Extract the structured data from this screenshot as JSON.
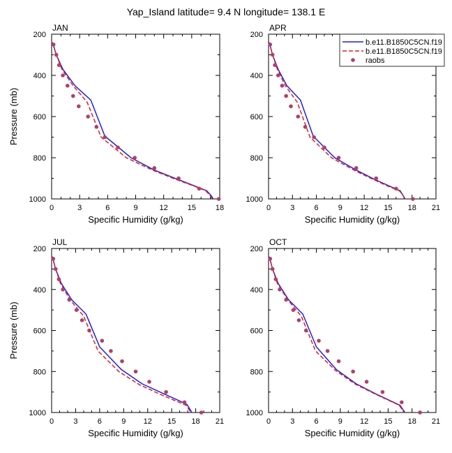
{
  "figure": {
    "title": "Yap_Island  latitude= 9.4 N longitude= 138.1 E"
  },
  "legend": {
    "placement": "top-right",
    "entries": [
      {
        "label": "b.e11.B1850C5CN.f19",
        "style": "solid-line",
        "color": "#1f1fdf"
      },
      {
        "label": "b.e11.B1850C5CN.f19",
        "style": "dashed-line",
        "color": "#df1f1f"
      },
      {
        "label": "raobs",
        "style": "marker",
        "color": "#b0406a"
      }
    ]
  },
  "chart_data": [
    {
      "type": "line",
      "panel_label": "JAN",
      "xlabel": "Specific Humidity (g/kg)",
      "ylabel": "Pressure (mb)",
      "xlim": [
        0,
        18
      ],
      "ylim": [
        1000,
        200
      ],
      "y_reversed": true,
      "xticks": [
        "0",
        "3",
        "6",
        "9",
        "12",
        "15",
        "18"
      ],
      "yticks": [
        "200",
        "400",
        "600",
        "800",
        "1000"
      ],
      "series": [
        {
          "style": "solid",
          "color": "#1f1fdf",
          "x": [
            0.1,
            0.5,
            1.2,
            2.5,
            4.2,
            5.7,
            8.5,
            11.0,
            13.5,
            15.5,
            16.6,
            17.1,
            17.3
          ],
          "y": [
            240,
            300,
            370,
            450,
            520,
            695,
            800,
            860,
            905,
            940,
            960,
            985,
            1000
          ]
        },
        {
          "style": "dashed",
          "color": "#df1f1f",
          "x": [
            0.1,
            0.5,
            1.1,
            2.3,
            3.8,
            5.3,
            8.0,
            10.8,
            13.3,
            15.4,
            16.5,
            17.0,
            17.2
          ],
          "y": [
            240,
            300,
            370,
            450,
            530,
            700,
            800,
            860,
            905,
            940,
            960,
            985,
            1000
          ]
        },
        {
          "style": "markers",
          "color": "#b0406a",
          "name": "raobs",
          "x": [
            0.2,
            0.5,
            0.8,
            1.2,
            1.7,
            2.3,
            2.9,
            3.9,
            4.8,
            5.7,
            7.1,
            8.9,
            11.0,
            13.6,
            15.8,
            17.9
          ],
          "y": [
            250,
            300,
            350,
            400,
            450,
            500,
            550,
            600,
            650,
            700,
            750,
            800,
            850,
            900,
            950,
            1000
          ]
        }
      ]
    },
    {
      "type": "line",
      "panel_label": "APR",
      "xlabel": "Specific Humidity (g/kg)",
      "ylabel": "",
      "xlim": [
        0,
        21
      ],
      "ylim": [
        1000,
        200
      ],
      "y_reversed": true,
      "xticks": [
        "0",
        "3",
        "6",
        "9",
        "12",
        "15",
        "18",
        "21"
      ],
      "yticks": [
        "200",
        "400",
        "600",
        "800",
        "1000"
      ],
      "series": [
        {
          "style": "solid",
          "color": "#1f1fdf",
          "x": [
            0.1,
            0.5,
            1.2,
            2.3,
            4.0,
            5.6,
            8.3,
            11.0,
            13.3,
            15.3,
            16.5,
            16.9,
            17.1
          ],
          "y": [
            240,
            300,
            370,
            450,
            520,
            695,
            800,
            860,
            905,
            940,
            960,
            985,
            1000
          ]
        },
        {
          "style": "dashed",
          "color": "#df1f1f",
          "x": [
            0.1,
            0.5,
            1.1,
            2.1,
            3.6,
            5.2,
            7.9,
            10.7,
            13.1,
            15.1,
            16.4,
            16.9,
            17.2
          ],
          "y": [
            240,
            300,
            370,
            450,
            530,
            700,
            800,
            860,
            905,
            940,
            960,
            985,
            1000
          ]
        },
        {
          "style": "markers",
          "color": "#b0406a",
          "name": "raobs",
          "x": [
            0.2,
            0.5,
            0.8,
            1.2,
            1.7,
            2.2,
            2.8,
            3.7,
            4.6,
            5.7,
            7.0,
            8.8,
            11.0,
            13.5,
            16.0,
            18.1
          ],
          "y": [
            250,
            300,
            350,
            400,
            450,
            500,
            550,
            600,
            650,
            700,
            750,
            800,
            850,
            900,
            950,
            1000
          ]
        }
      ]
    },
    {
      "type": "line",
      "panel_label": "JUL",
      "xlabel": "Specific Humidity (g/kg)",
      "ylabel": "Pressure (mb)",
      "xlim": [
        0,
        21
      ],
      "ylim": [
        1000,
        200
      ],
      "y_reversed": true,
      "xticks": [
        "0",
        "3",
        "6",
        "9",
        "12",
        "15",
        "18",
        "21"
      ],
      "yticks": [
        "200",
        "400",
        "600",
        "800",
        "1000"
      ],
      "series": [
        {
          "style": "solid",
          "color": "#1f1fdf",
          "x": [
            0.1,
            0.5,
            1.2,
            2.5,
            4.3,
            6.0,
            8.7,
            11.3,
            13.8,
            15.8,
            16.9,
            17.3,
            17.5
          ],
          "y": [
            240,
            300,
            370,
            450,
            520,
            680,
            790,
            860,
            905,
            940,
            960,
            985,
            1000
          ]
        },
        {
          "style": "dashed",
          "color": "#df1f1f",
          "x": [
            0.1,
            0.5,
            1.1,
            2.3,
            4.0,
            5.8,
            8.4,
            11.0,
            13.5,
            15.6,
            16.8,
            17.2,
            17.4
          ],
          "y": [
            240,
            300,
            370,
            450,
            530,
            700,
            800,
            865,
            910,
            945,
            965,
            988,
            1000
          ]
        },
        {
          "style": "markers",
          "color": "#b0406a",
          "name": "raobs",
          "x": [
            0.2,
            0.5,
            0.9,
            1.4,
            2.2,
            3.1,
            3.8,
            4.7,
            6.3,
            7.4,
            8.8,
            10.5,
            12.2,
            14.3,
            16.6,
            18.7
          ],
          "y": [
            250,
            300,
            350,
            400,
            450,
            500,
            550,
            600,
            650,
            700,
            750,
            800,
            850,
            900,
            950,
            1000
          ]
        }
      ]
    },
    {
      "type": "line",
      "panel_label": "OCT",
      "xlabel": "Specific Humidity (g/kg)",
      "ylabel": "",
      "xlim": [
        0,
        21
      ],
      "ylim": [
        1000,
        200
      ],
      "y_reversed": true,
      "xticks": [
        "0",
        "3",
        "6",
        "9",
        "12",
        "15",
        "18",
        "21"
      ],
      "yticks": [
        "200",
        "400",
        "600",
        "800",
        "1000"
      ],
      "series": [
        {
          "style": "solid",
          "color": "#1f1fdf",
          "x": [
            0.1,
            0.5,
            1.2,
            2.5,
            4.3,
            6.0,
            8.5,
            11.0,
            13.5,
            15.4,
            16.5,
            16.9,
            17.1
          ],
          "y": [
            240,
            300,
            370,
            450,
            520,
            680,
            790,
            860,
            910,
            945,
            965,
            988,
            1000
          ]
        },
        {
          "style": "dashed",
          "color": "#df1f1f",
          "x": [
            0.1,
            0.5,
            1.1,
            2.4,
            4.1,
            5.9,
            8.4,
            10.9,
            13.4,
            15.3,
            16.4,
            16.8,
            17.0
          ],
          "y": [
            240,
            300,
            370,
            450,
            530,
            700,
            795,
            862,
            910,
            945,
            965,
            988,
            1000
          ]
        },
        {
          "style": "markers",
          "color": "#b0406a",
          "name": "raobs",
          "x": [
            0.2,
            0.5,
            0.9,
            1.4,
            2.2,
            3.1,
            3.8,
            4.7,
            6.3,
            7.4,
            8.8,
            10.6,
            12.3,
            14.3,
            16.7,
            19.0
          ],
          "y": [
            250,
            300,
            350,
            400,
            450,
            500,
            550,
            600,
            650,
            700,
            750,
            800,
            850,
            900,
            950,
            1000
          ]
        }
      ]
    }
  ]
}
